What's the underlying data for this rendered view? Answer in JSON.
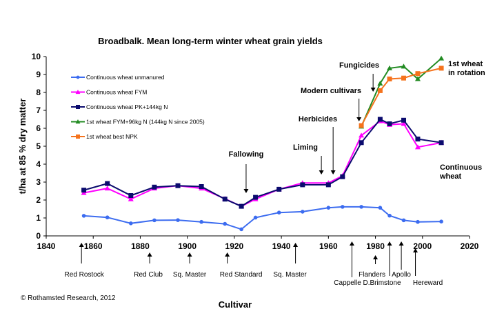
{
  "chart_data": {
    "type": "line",
    "title": "Broadbalk. Mean long-term winter wheat grain yields",
    "xlabel": "Cultivar",
    "ylabel": "t/ha at 85 % dry matter",
    "xlim": [
      1840,
      2020
    ],
    "ylim": [
      0,
      10
    ],
    "x_ticks": [
      "1840",
      "1860",
      "1880",
      "1900",
      "1920",
      "1940",
      "1960",
      "1980",
      "2000",
      "2020"
    ],
    "y_ticks": [
      "0",
      "1",
      "2",
      "3",
      "4",
      "5",
      "6",
      "7",
      "8",
      "9",
      "10"
    ],
    "grid": false,
    "legend_position": "upper-left",
    "series": [
      {
        "name": "Continuous wheat unmanured",
        "color": "#3c6cf0",
        "marker": "circle",
        "points": [
          [
            1856,
            1.12
          ],
          [
            1866,
            1.03
          ],
          [
            1876,
            0.7
          ],
          [
            1886,
            0.87
          ],
          [
            1896,
            0.88
          ],
          [
            1906,
            0.78
          ],
          [
            1916,
            0.67
          ],
          [
            1923,
            0.37
          ],
          [
            1929,
            1.02
          ],
          [
            1939,
            1.3
          ],
          [
            1949,
            1.35
          ],
          [
            1960,
            1.57
          ],
          [
            1966,
            1.62
          ],
          [
            1974,
            1.62
          ],
          [
            1982,
            1.57
          ],
          [
            1986,
            1.13
          ],
          [
            1992,
            0.87
          ],
          [
            1998,
            0.78
          ],
          [
            2008,
            0.8
          ]
        ]
      },
      {
        "name": "Continuous wheat FYM",
        "color": "#ff00ff",
        "marker": "triangle",
        "points": [
          [
            1856,
            2.4
          ],
          [
            1866,
            2.65
          ],
          [
            1876,
            2.05
          ],
          [
            1886,
            2.65
          ],
          [
            1896,
            2.8
          ],
          [
            1906,
            2.65
          ],
          [
            1916,
            2.07
          ],
          [
            1923,
            1.65
          ],
          [
            1929,
            2.05
          ],
          [
            1939,
            2.6
          ],
          [
            1949,
            2.95
          ],
          [
            1960,
            2.95
          ],
          [
            1966,
            3.35
          ],
          [
            1974,
            5.6
          ],
          [
            1982,
            6.4
          ],
          [
            1986,
            6.2
          ],
          [
            1992,
            6.25
          ],
          [
            1998,
            4.95
          ],
          [
            2008,
            5.2
          ]
        ]
      },
      {
        "name": "Continuous wheat PK+144kg N",
        "color": "#0b0b6e",
        "marker": "square",
        "points": [
          [
            1856,
            2.55
          ],
          [
            1866,
            2.92
          ],
          [
            1876,
            2.25
          ],
          [
            1886,
            2.72
          ],
          [
            1896,
            2.8
          ],
          [
            1906,
            2.75
          ],
          [
            1916,
            2.05
          ],
          [
            1923,
            1.65
          ],
          [
            1929,
            2.15
          ],
          [
            1939,
            2.6
          ],
          [
            1949,
            2.85
          ],
          [
            1960,
            2.85
          ],
          [
            1966,
            3.3
          ],
          [
            1974,
            5.2
          ],
          [
            1982,
            6.5
          ],
          [
            1986,
            6.25
          ],
          [
            1992,
            6.45
          ],
          [
            1998,
            5.4
          ],
          [
            2008,
            5.2
          ]
        ]
      },
      {
        "name": "1st wheat FYM+96kg N (144kg N since 2005)",
        "color": "#228b22",
        "marker": "triangle",
        "points": [
          [
            1974,
            6.1
          ],
          [
            1982,
            8.5
          ],
          [
            1986,
            9.35
          ],
          [
            1992,
            9.45
          ],
          [
            1998,
            8.75
          ],
          [
            2008,
            9.9
          ]
        ]
      },
      {
        "name": "1st wheat best NPK",
        "color": "#f5731d",
        "marker": "square",
        "points": [
          [
            1974,
            6.15
          ],
          [
            1982,
            8.1
          ],
          [
            1986,
            8.75
          ],
          [
            1992,
            8.8
          ],
          [
            1998,
            9.05
          ],
          [
            2008,
            9.35
          ]
        ]
      }
    ],
    "annotations": [
      {
        "text": "Fallowing",
        "x": 1925
      },
      {
        "text": "Liming",
        "x": 1957
      },
      {
        "text": "Herbicides",
        "x": 1962
      },
      {
        "text": "Modern cultivars",
        "x": 1973
      },
      {
        "text": "Fungicides",
        "x": 1979
      }
    ],
    "series_labels": [
      {
        "text": "1st wheat in rotation",
        "lines": [
          "1st wheat",
          "in rotation"
        ]
      },
      {
        "text": "Continuous wheat",
        "lines": [
          "Continuous",
          "wheat"
        ]
      }
    ],
    "cultivars": [
      {
        "name": "Red Rostock",
        "x": 1855
      },
      {
        "name": "Red Club",
        "x": 1884
      },
      {
        "name": "Sq. Master",
        "x": 1901
      },
      {
        "name": "Red Standard",
        "x": 1917
      },
      {
        "name": "Sq. Master",
        "x": 1946
      },
      {
        "name": "Cappelle D.",
        "x": 1970
      },
      {
        "name": "Flanders",
        "x": 1980
      },
      {
        "name": "Brimstone",
        "x": 1986
      },
      {
        "name": "Apollo",
        "x": 1991
      },
      {
        "name": "Hereward",
        "x": 1997
      }
    ],
    "copyright": "© Rothamsted Research, 2012"
  }
}
